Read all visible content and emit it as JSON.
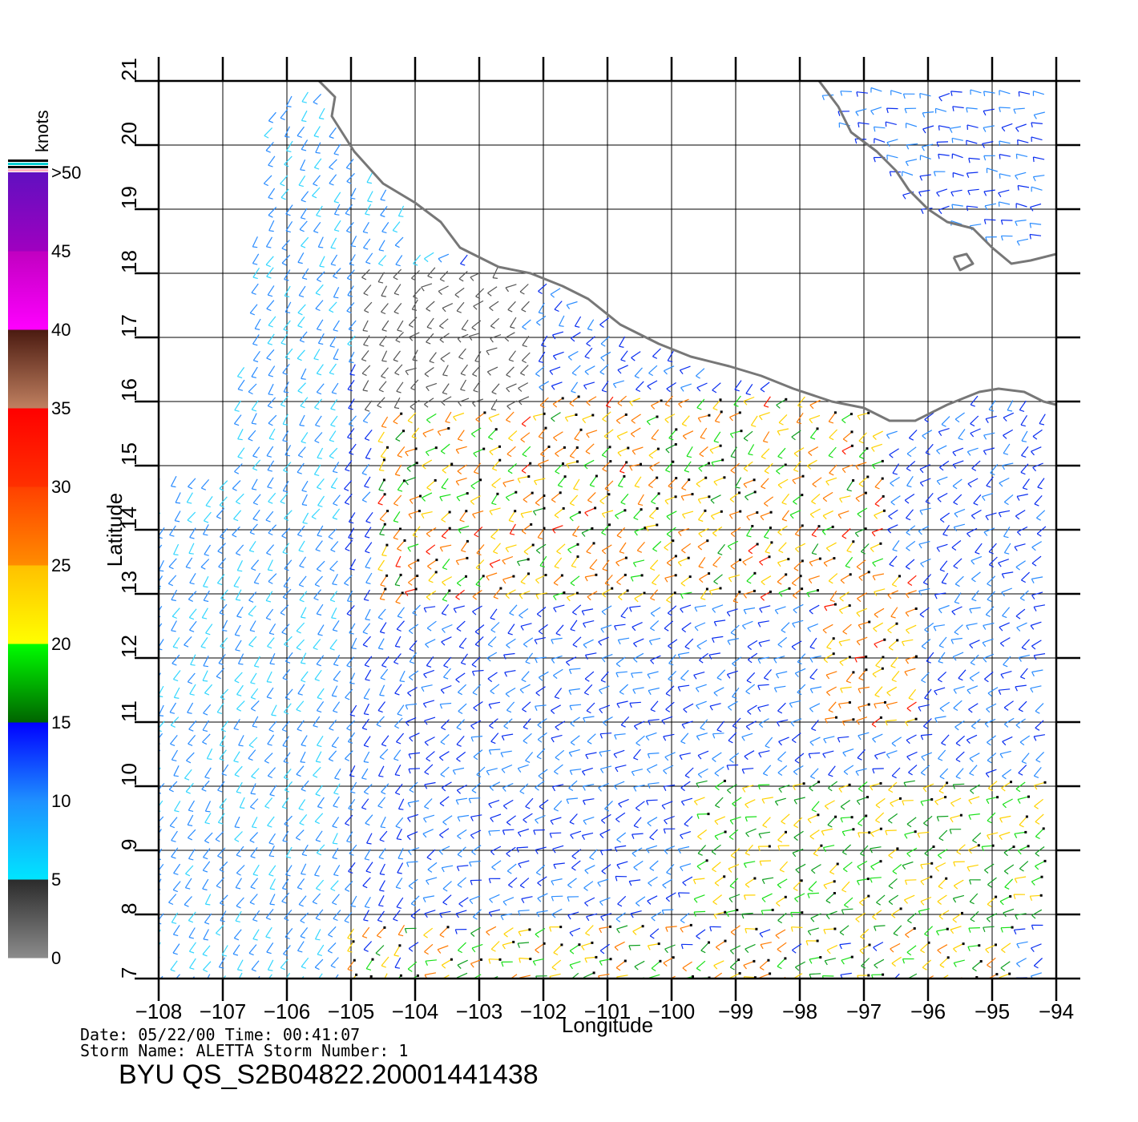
{
  "axes": {
    "xlabel": "Longitude",
    "ylabel": "Latitude",
    "x_ticks": [
      "−108",
      "−107",
      "−106",
      "−105",
      "−104",
      "−103",
      "−102",
      "−101",
      "−100",
      "−99",
      "−98",
      "−97",
      "−96",
      "−95",
      "−94"
    ],
    "y_ticks": [
      "7",
      "8",
      "9",
      "10",
      "11",
      "12",
      "13",
      "14",
      "15",
      "16",
      "17",
      "18",
      "19",
      "20",
      "21"
    ],
    "lon_range": [
      -108,
      -94
    ],
    "lat_range": [
      7,
      21
    ],
    "grid": true
  },
  "colorbar": {
    "unit": "knots",
    "labels": [
      "0",
      "5",
      "10",
      "15",
      "20",
      "25",
      "30",
      "35",
      "40",
      "45",
      ">50"
    ],
    "segments": [
      {
        "from": 0,
        "to": 5,
        "colors": [
          "#8c8c8c",
          "#2a2a2a"
        ]
      },
      {
        "from": 5,
        "to": 10,
        "colors": [
          "#00e5ff",
          "#1e90ff"
        ]
      },
      {
        "from": 10,
        "to": 15,
        "colors": [
          "#1e90ff",
          "#0000ff"
        ]
      },
      {
        "from": 15,
        "to": 20,
        "colors": [
          "#006400",
          "#00ff00"
        ]
      },
      {
        "from": 20,
        "to": 25,
        "colors": [
          "#ffff00",
          "#ffc000"
        ]
      },
      {
        "from": 25,
        "to": 30,
        "colors": [
          "#ff8c00",
          "#ff4000"
        ]
      },
      {
        "from": 30,
        "to": 35,
        "colors": [
          "#ff3000",
          "#ff0000"
        ]
      },
      {
        "from": 35,
        "to": 40,
        "colors": [
          "#c08060",
          "#4a1a10"
        ]
      },
      {
        "from": 40,
        "to": 45,
        "colors": [
          "#ff00ff",
          "#c000c0"
        ]
      },
      {
        "from": 45,
        "to": 50,
        "colors": [
          "#a000c0",
          "#6010c0"
        ]
      }
    ]
  },
  "metadata": {
    "date_line": "Date:  05/22/00   Time:  00:41:07",
    "storm_line": "Storm  Name:  ALETTA    Storm  Number:  1",
    "product": "BYU  QS_S2B04822.20001441438"
  },
  "coastline": {
    "mexico_pacific": [
      [
        -105.5,
        21.0
      ],
      [
        -105.25,
        20.75
      ],
      [
        -105.3,
        20.45
      ],
      [
        -104.95,
        19.9
      ],
      [
        -104.5,
        19.4
      ],
      [
        -104.0,
        19.1
      ],
      [
        -103.6,
        18.8
      ],
      [
        -103.3,
        18.4
      ],
      [
        -102.7,
        18.1
      ],
      [
        -102.2,
        18.0
      ],
      [
        -101.7,
        17.8
      ],
      [
        -101.3,
        17.6
      ],
      [
        -100.8,
        17.2
      ],
      [
        -100.2,
        16.9
      ],
      [
        -99.7,
        16.7
      ],
      [
        -99.1,
        16.55
      ],
      [
        -98.6,
        16.4
      ],
      [
        -98.1,
        16.2
      ],
      [
        -97.5,
        16.0
      ],
      [
        -97.0,
        15.9
      ],
      [
        -96.6,
        15.7
      ],
      [
        -96.2,
        15.7
      ],
      [
        -95.7,
        15.95
      ],
      [
        -95.2,
        16.15
      ],
      [
        -94.9,
        16.2
      ],
      [
        -94.5,
        16.15
      ],
      [
        -94.2,
        16.0
      ],
      [
        -94.0,
        15.95
      ]
    ],
    "gulf_mexico": [
      [
        -97.7,
        21.0
      ],
      [
        -97.4,
        20.6
      ],
      [
        -97.2,
        20.2
      ],
      [
        -96.8,
        19.9
      ],
      [
        -96.5,
        19.6
      ],
      [
        -96.3,
        19.3
      ],
      [
        -96.0,
        19.0
      ],
      [
        -95.7,
        18.8
      ],
      [
        -95.3,
        18.7
      ],
      [
        -95.0,
        18.4
      ],
      [
        -94.7,
        18.15
      ],
      [
        -94.4,
        18.2
      ],
      [
        -94.0,
        18.3
      ]
    ],
    "island": [
      [
        -95.6,
        18.25
      ],
      [
        -95.4,
        18.3
      ],
      [
        -95.3,
        18.15
      ],
      [
        -95.5,
        18.05
      ],
      [
        -95.6,
        18.25
      ]
    ]
  }
}
